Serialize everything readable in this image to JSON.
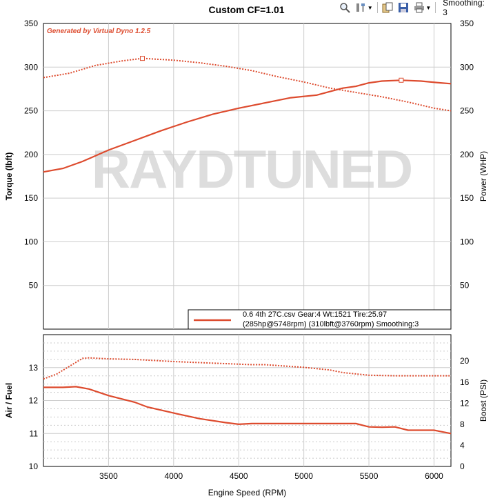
{
  "toolbar": {
    "icons": [
      "zoom-icon",
      "tools-icon",
      "copy-icon",
      "save-icon",
      "print-icon"
    ],
    "smoothing_label": "Smoothing: 3"
  },
  "watermark": "RAYDTUNED",
  "generated_by": "Generated by Virtual Dyno 1.2.5",
  "colors": {
    "series": "#dd4b2e",
    "watermark": "#cfcfcf",
    "grid": "#cccccc",
    "generated": "#dd4b2e"
  },
  "chart_data": [
    {
      "type": "line",
      "title": "Custom CF=1.01",
      "xlabel": "",
      "ylabel": "Torque (lbft)",
      "y2label": "Power (WHP)",
      "xlim": [
        3000,
        6130
      ],
      "ylim": [
        0,
        350
      ],
      "y2lim": [
        0,
        350
      ],
      "yticks": [
        50,
        100,
        150,
        200,
        250,
        300,
        350
      ],
      "y2ticks": [
        50,
        100,
        150,
        200,
        250,
        300,
        350
      ],
      "xgrid": [
        3500,
        4000,
        4500,
        5000,
        5500,
        6000
      ],
      "grid": true,
      "legend": {
        "placement": "bottom-right",
        "line1": "0.6 4th 27C.csv Gear:4 Wt:1521 Tire:25.97",
        "line2": "(285hp@5748rpm) (310lbft@3760rpm) Smoothing:3"
      },
      "series": [
        {
          "axis": "torque",
          "style": "dotted",
          "x": [
            3000,
            3200,
            3400,
            3600,
            3760,
            4000,
            4200,
            4400,
            4600,
            4800,
            5000,
            5200,
            5400,
            5600,
            5800,
            6000,
            6130
          ],
          "y": [
            288,
            293,
            302,
            307,
            310,
            308,
            305,
            301,
            296,
            289,
            283,
            276,
            271,
            266,
            260,
            253,
            250
          ],
          "marker": {
            "x": 3760,
            "y": 310
          }
        },
        {
          "axis": "power",
          "style": "solid",
          "x": [
            3000,
            3150,
            3300,
            3500,
            3700,
            3900,
            4100,
            4300,
            4500,
            4700,
            4900,
            5100,
            5200,
            5300,
            5400,
            5500,
            5600,
            5748,
            5900,
            6050,
            6130
          ],
          "y": [
            180,
            184,
            192,
            205,
            216,
            227,
            237,
            246,
            253,
            259,
            265,
            268,
            272,
            276,
            278,
            282,
            284,
            285,
            284,
            282,
            281
          ],
          "marker": {
            "x": 5748,
            "y": 285
          }
        }
      ]
    },
    {
      "type": "line",
      "xlabel": "Engine Speed (RPM)",
      "ylabel": "Air / Fuel",
      "y2label": "Boost (PSI)",
      "xlim": [
        3000,
        6130
      ],
      "ylim": [
        10,
        14
      ],
      "y2lim": [
        0,
        25
      ],
      "xticks": [
        3500,
        4000,
        4500,
        5000,
        5500,
        6000
      ],
      "yticks": [
        10,
        11,
        12,
        13
      ],
      "y2ticks": [
        0,
        4,
        8,
        12,
        16,
        20
      ],
      "grid": true,
      "series": [
        {
          "axis": "boost",
          "style": "dotted",
          "x": [
            3000,
            3100,
            3200,
            3300,
            3350,
            3500,
            3700,
            4000,
            4300,
            4600,
            4700,
            5000,
            5200,
            5300,
            5500,
            5700,
            6000,
            6130
          ],
          "y": [
            16.6,
            17.5,
            19.0,
            20.5,
            20.6,
            20.4,
            20.3,
            19.9,
            19.6,
            19.3,
            19.3,
            18.8,
            18.3,
            17.8,
            17.3,
            17.2,
            17.2,
            17.2
          ]
        },
        {
          "axis": "afr",
          "style": "solid",
          "x": [
            3000,
            3150,
            3250,
            3350,
            3500,
            3700,
            3800,
            4000,
            4200,
            4400,
            4500,
            4600,
            5000,
            5200,
            5400,
            5500,
            5600,
            5700,
            5800,
            6000,
            6130
          ],
          "y": [
            12.4,
            12.4,
            12.42,
            12.35,
            12.15,
            11.95,
            11.8,
            11.62,
            11.45,
            11.33,
            11.28,
            11.3,
            11.3,
            11.3,
            11.3,
            11.2,
            11.19,
            11.2,
            11.1,
            11.1,
            11.0
          ]
        }
      ]
    }
  ]
}
